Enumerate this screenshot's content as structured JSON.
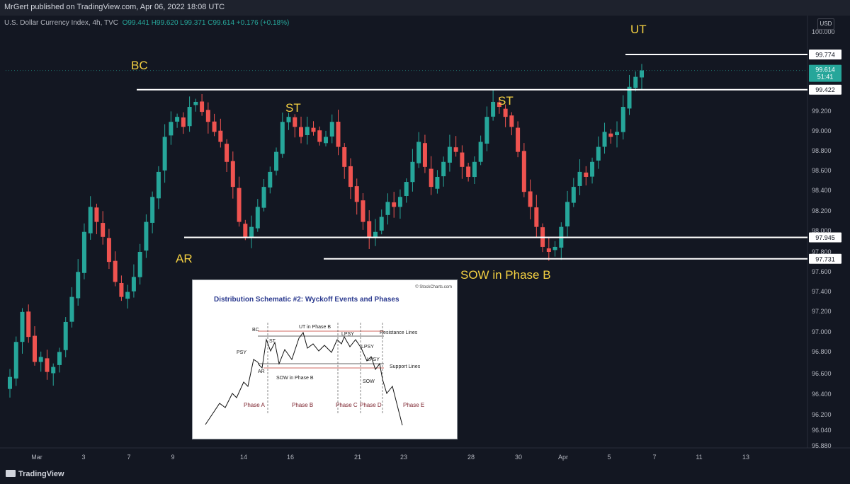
{
  "header": {
    "published": "MrGert published on TradingView.com, Apr 06, 2022 18:08 UTC",
    "symbol": "U.S. Dollar Currency Index, 4h, TVC",
    "ohlc": "O99.441  H99.620  L99.371  C99.614  +0.176 (+0.18%)",
    "currency": "USD"
  },
  "footer": {
    "brand": "TradingView"
  },
  "colors": {
    "up": "#26a69a",
    "down": "#ef5350",
    "background": "#131722",
    "annotation": "#f5d142"
  },
  "chart_data": {
    "type": "candlestick",
    "y_ticks": [
      "100.000",
      "99.200",
      "99.000",
      "98.800",
      "98.600",
      "98.400",
      "98.200",
      "98.000",
      "97.800",
      "97.600",
      "97.400",
      "97.200",
      "97.000",
      "96.800",
      "96.600",
      "96.400",
      "96.200",
      "96.040",
      "95.880"
    ],
    "x_ticks": [
      "Mar",
      "3",
      "7",
      "9",
      "14",
      "16",
      "21",
      "23",
      "28",
      "30",
      "Apr",
      "5",
      "7",
      "11",
      "13"
    ],
    "ylim": [
      95.82,
      100.09
    ],
    "price_tag": {
      "value": "99.614",
      "countdown": "51:41"
    },
    "levels": [
      {
        "value": 99.774,
        "label": "99.774"
      },
      {
        "value": 99.422,
        "label": "99.422"
      },
      {
        "value": 97.945,
        "label": "97.945"
      },
      {
        "value": 97.731,
        "label": "97.731"
      }
    ],
    "annotations": [
      "BC",
      "AR",
      "ST",
      "ST",
      "SOW in Phase B",
      "UT"
    ],
    "series_close": [
      96.55,
      96.9,
      97.2,
      96.95,
      96.7,
      96.75,
      96.6,
      96.65,
      96.8,
      97.1,
      97.35,
      97.6,
      98.0,
      98.25,
      98.1,
      97.95,
      97.7,
      97.5,
      97.35,
      97.4,
      97.55,
      97.8,
      98.1,
      98.35,
      98.6,
      98.95,
      99.1,
      99.15,
      99.05,
      99.25,
      99.3,
      99.2,
      99.1,
      99.0,
      98.9,
      98.7,
      98.45,
      98.1,
      97.95,
      98.05,
      98.25,
      98.45,
      98.6,
      98.8,
      99.1,
      99.15,
      99.05,
      98.95,
      99.05,
      99.0,
      98.9,
      98.95,
      99.1,
      98.85,
      98.65,
      98.45,
      98.3,
      98.1,
      97.95,
      98.0,
      98.15,
      98.3,
      98.25,
      98.35,
      98.5,
      98.7,
      98.9,
      98.65,
      98.45,
      98.55,
      98.7,
      98.85,
      98.8,
      98.65,
      98.55,
      98.7,
      98.9,
      99.15,
      99.3,
      99.25,
      99.15,
      99.05,
      98.8,
      98.4,
      98.25,
      98.05,
      97.85,
      97.8,
      97.85,
      98.05,
      98.3,
      98.45,
      98.6,
      98.55,
      98.7,
      98.85,
      99.0,
      98.95,
      99.0,
      99.25,
      99.45,
      99.55,
      99.614
    ],
    "inset": {
      "title": "Distribution Schematic #2: Wyckoff Events and Phases",
      "copyright": "© StockCharts.com",
      "labels": [
        "BC",
        "PSY",
        "ST",
        "AR",
        "UT in Phase B",
        "SOW in Phase B",
        "LPSY",
        "LPSY",
        "LPSY",
        "SOW",
        "Resistance Lines",
        "Support Lines"
      ],
      "phases": [
        "Phase A",
        "Phase B",
        "Phase C",
        "Phase D",
        "Phase E"
      ]
    }
  }
}
